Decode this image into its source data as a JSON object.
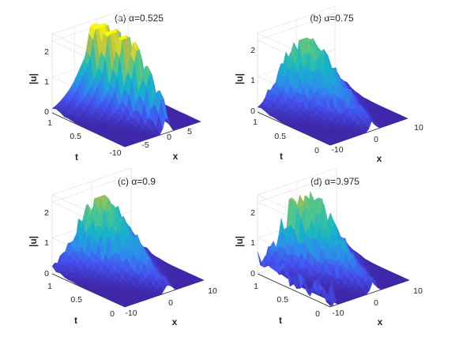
{
  "chart_data": [
    {
      "type": "surface",
      "title": "(a) α=0.525",
      "xlabel": "x",
      "ylabel": "t",
      "zlabel": "|u|",
      "xticks": [
        "-10",
        "-5",
        "0",
        "5"
      ],
      "yticks": [
        "0.5",
        "1"
      ],
      "zticks": [
        "0",
        "1",
        "2"
      ],
      "xlim": [
        -10,
        7
      ],
      "ylim": [
        0,
        1
      ],
      "zlim": [
        0,
        2.2
      ],
      "peak": 2.1,
      "colormap": [
        "#3e26a8",
        "#4450f0",
        "#2d8cec",
        "#15b4c8",
        "#4ac590",
        "#b6bc44",
        "#f9fb0e"
      ]
    },
    {
      "type": "surface",
      "title": "(b) α=0.75",
      "xlabel": "x",
      "ylabel": "t",
      "zlabel": "|u|",
      "xticks": [
        "-10",
        "0",
        "10"
      ],
      "yticks": [
        "0",
        "0.5",
        "1"
      ],
      "zticks": [
        "0",
        "1",
        "2"
      ],
      "xlim": [
        -10,
        10
      ],
      "ylim": [
        0,
        1
      ],
      "zlim": [
        0,
        2.2
      ],
      "peak": 1.6
    },
    {
      "type": "surface",
      "title": "(c) α=0.9",
      "xlabel": "x",
      "ylabel": "t",
      "zlabel": "|u|",
      "xticks": [
        "-10",
        "0",
        "10"
      ],
      "yticks": [
        "0",
        "0.5",
        "1"
      ],
      "zticks": [
        "0",
        "1",
        "2"
      ],
      "xlim": [
        -10,
        10
      ],
      "ylim": [
        0,
        1
      ],
      "zlim": [
        0,
        2.2
      ],
      "peak": 1.7
    },
    {
      "type": "surface",
      "title": "(d) α=0.975",
      "xlabel": "x",
      "ylabel": "t",
      "zlabel": "|u|",
      "xticks": [
        "-10",
        "0",
        "10"
      ],
      "yticks": [
        "0",
        "0.5",
        "1"
      ],
      "zticks": [
        "0",
        "1",
        "2"
      ],
      "xlim": [
        -10,
        10
      ],
      "ylim": [
        0,
        1
      ],
      "zlim": [
        0,
        2.2
      ],
      "peak": 1.8
    }
  ]
}
